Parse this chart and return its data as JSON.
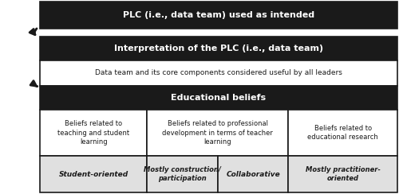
{
  "bg_color": "#ffffff",
  "arrow_color": "#1a1a1a",
  "dark_bg": "#1a1a1a",
  "dark_text": "#ffffff",
  "light_bg": "#ffffff",
  "light_text": "#1a1a1a",
  "gray_bg": "#e0e0e0",
  "border_color": "#1a1a1a",
  "row1_header": "PLC (i.e., data team) used as intended",
  "row2_header": "Interpretation of the PLC (i.e., data team)",
  "row2_body": "Data team and its core components considered useful by all leaders",
  "row3_header": "Educational beliefs",
  "row3_col1_top": "Beliefs related to\nteaching and student\nlearning",
  "row3_col2_top": "Beliefs related to professional\ndevelopment in terms of teacher\nlearning",
  "row3_col3_top": "Beliefs related to\neducational research",
  "row3_col1_bot": "Student-oriented",
  "row3_col2_bot_a": "Mostly construction/\nparticipation",
  "row3_col2_bot_b": "Collaborative",
  "row3_col3_bot": "Mostly practitioner-\noriented",
  "fig_width": 5.0,
  "fig_height": 2.44,
  "dpi": 100
}
